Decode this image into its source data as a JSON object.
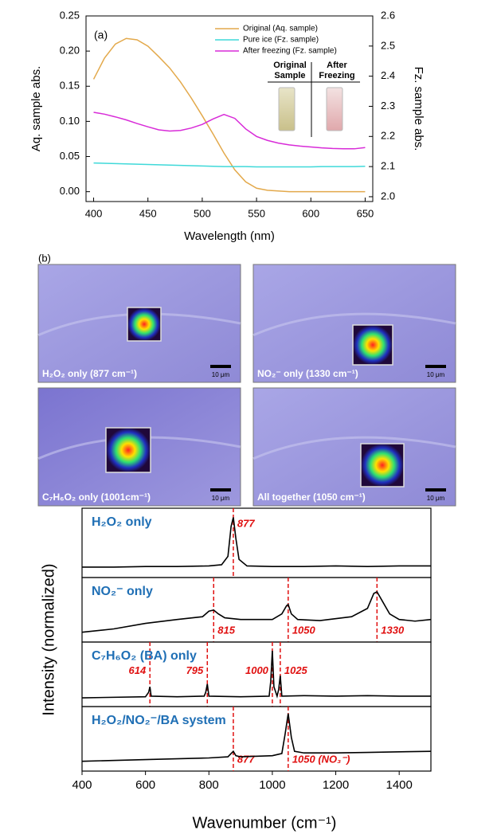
{
  "chart_data": [
    {
      "type": "line",
      "panel_label": "(a)",
      "xlabel": "Wavelength (nm)",
      "ylabel": "Aq. sample abs.",
      "y2label": "Fz. sample abs.",
      "x": [
        400,
        410,
        420,
        430,
        440,
        450,
        460,
        470,
        480,
        490,
        500,
        510,
        520,
        530,
        540,
        550,
        560,
        570,
        580,
        590,
        600,
        610,
        620,
        630,
        640,
        650
      ],
      "series": [
        {
          "name": "Original (Aq. sample)",
          "color": "#e3a94b",
          "axis": "y",
          "values": [
            0.16,
            0.19,
            0.21,
            0.218,
            0.216,
            0.207,
            0.192,
            0.176,
            0.156,
            0.133,
            0.108,
            0.082,
            0.055,
            0.031,
            0.014,
            0.005,
            0.002,
            0.001,
            0,
            0,
            0,
            0,
            0,
            0,
            0,
            0
          ]
        },
        {
          "name": "Pure ice (Fz. sample)",
          "color": "#3fd9d9",
          "axis": "y2",
          "values": [
            2.112,
            2.111,
            2.11,
            2.109,
            2.108,
            2.107,
            2.106,
            2.105,
            2.104,
            2.103,
            2.102,
            2.101,
            2.1,
            2.1,
            2.1,
            2.099,
            2.099,
            2.099,
            2.099,
            2.099,
            2.099,
            2.1,
            2.1,
            2.1,
            2.1,
            2.101
          ]
        },
        {
          "name": "After freezing (Fz. sample)",
          "color": "#d82bd8",
          "axis": "y2",
          "values": [
            2.28,
            2.274,
            2.265,
            2.255,
            2.243,
            2.232,
            2.222,
            2.218,
            2.22,
            2.228,
            2.24,
            2.258,
            2.273,
            2.26,
            2.225,
            2.2,
            2.187,
            2.178,
            2.172,
            2.168,
            2.165,
            2.162,
            2.16,
            2.159,
            2.159,
            2.163
          ]
        }
      ],
      "xlim": [
        393,
        657
      ],
      "xticks": [
        400,
        450,
        500,
        550,
        600,
        650
      ],
      "ylim": [
        -0.014,
        0.25
      ],
      "yticks": [
        {
          "value": 0,
          "label": "0.00"
        },
        0.05,
        {
          "value": 0.1,
          "label": "0.10"
        },
        0.15,
        {
          "value": 0.2,
          "label": "0.20"
        },
        0.25
      ],
      "y2lim": [
        1.984,
        2.6
      ],
      "y2ticks": [
        {
          "value": 2,
          "label": "2.0"
        },
        2.1,
        2.2,
        2.3,
        2.4,
        2.5,
        2.6
      ],
      "inset": {
        "labels": [
          "Original Sample",
          "After Freezing"
        ]
      }
    },
    {
      "type": "line",
      "xlabel": "Wavenumber (cm⁻¹)",
      "ylabel": "Intensity (normalized)",
      "xlim": [
        400,
        1500
      ],
      "xticks": [
        400,
        600,
        800,
        1000,
        1200,
        1400
      ],
      "ylim": [
        0,
        1.05
      ],
      "panels": [
        {
          "label": "H₂O₂ only",
          "color": "#000000",
          "x": [
            400,
            500,
            600,
            700,
            800,
            840,
            860,
            870,
            877,
            885,
            895,
            920,
            1000,
            1100,
            1200,
            1300,
            1400,
            1500
          ],
          "values": [
            0.12,
            0.12,
            0.13,
            0.13,
            0.14,
            0.16,
            0.3,
            0.8,
            0.95,
            0.6,
            0.25,
            0.14,
            0.13,
            0.13,
            0.14,
            0.13,
            0.14,
            0.14
          ],
          "markers": [
            {
              "x": 877,
              "text": "877"
            }
          ]
        },
        {
          "label": "NO₂⁻ only",
          "color": "#000000",
          "x": [
            400,
            500,
            600,
            700,
            780,
            800,
            815,
            830,
            850,
            900,
            1000,
            1030,
            1045,
            1050,
            1060,
            1080,
            1150,
            1250,
            1300,
            1320,
            1330,
            1345,
            1370,
            1400,
            1450,
            1500
          ],
          "values": [
            0.12,
            0.18,
            0.28,
            0.35,
            0.4,
            0.5,
            0.52,
            0.45,
            0.38,
            0.35,
            0.35,
            0.45,
            0.6,
            0.62,
            0.45,
            0.35,
            0.33,
            0.4,
            0.55,
            0.82,
            0.85,
            0.7,
            0.45,
            0.35,
            0.32,
            0.35
          ],
          "markers": [
            {
              "x": 815,
              "text": "815"
            },
            {
              "x": 1050,
              "text": "1050"
            },
            {
              "x": 1330,
              "text": "1330"
            }
          ]
        },
        {
          "label": "C₇H₆O₂ (BA) only",
          "color": "#000000",
          "x": [
            400,
            600,
            610,
            614,
            618,
            700,
            785,
            790,
            795,
            800,
            900,
            990,
            995,
            1000,
            1005,
            1015,
            1020,
            1025,
            1030,
            1100,
            1200,
            1300,
            1400,
            1500
          ],
          "values": [
            0.1,
            0.12,
            0.2,
            0.3,
            0.13,
            0.12,
            0.13,
            0.2,
            0.35,
            0.13,
            0.12,
            0.13,
            0.4,
            0.95,
            0.3,
            0.13,
            0.25,
            0.5,
            0.13,
            0.14,
            0.13,
            0.14,
            0.13,
            0.13
          ],
          "markers": [
            {
              "x": 614,
              "text": "614"
            },
            {
              "x": 795,
              "text": "795"
            },
            {
              "x": 1000,
              "text": "1000"
            },
            {
              "x": 1025,
              "text": "1025"
            }
          ]
        },
        {
          "label": "H₂O₂/NO₂⁻/BA system",
          "color": "#000000",
          "x": [
            400,
            600,
            800,
            860,
            870,
            877,
            885,
            900,
            1000,
            1030,
            1040,
            1050,
            1060,
            1070,
            1100,
            1200,
            1300,
            1400,
            1500
          ],
          "values": [
            0.12,
            0.15,
            0.18,
            0.2,
            0.26,
            0.3,
            0.22,
            0.2,
            0.22,
            0.26,
            0.6,
            0.98,
            0.55,
            0.3,
            0.27,
            0.27,
            0.28,
            0.29,
            0.3
          ],
          "markers": [
            {
              "x": 877,
              "text": "877"
            },
            {
              "x": 1050,
              "text": "1050 (NO₃⁻)"
            }
          ]
        }
      ]
    }
  ],
  "micrographs": {
    "panel_label": "(b)",
    "images": [
      {
        "caption": "H₂O₂ only (877 cm⁻¹)",
        "scale_bar": "10 μm"
      },
      {
        "caption": "NO₂⁻ only (1330 cm⁻¹)",
        "scale_bar": "10 μm"
      },
      {
        "caption": "C₇H₆O₂ only (1001cm⁻¹)",
        "scale_bar": "10 μm"
      },
      {
        "caption": "All together (1050 cm⁻¹)",
        "scale_bar": "10 μm"
      }
    ]
  }
}
